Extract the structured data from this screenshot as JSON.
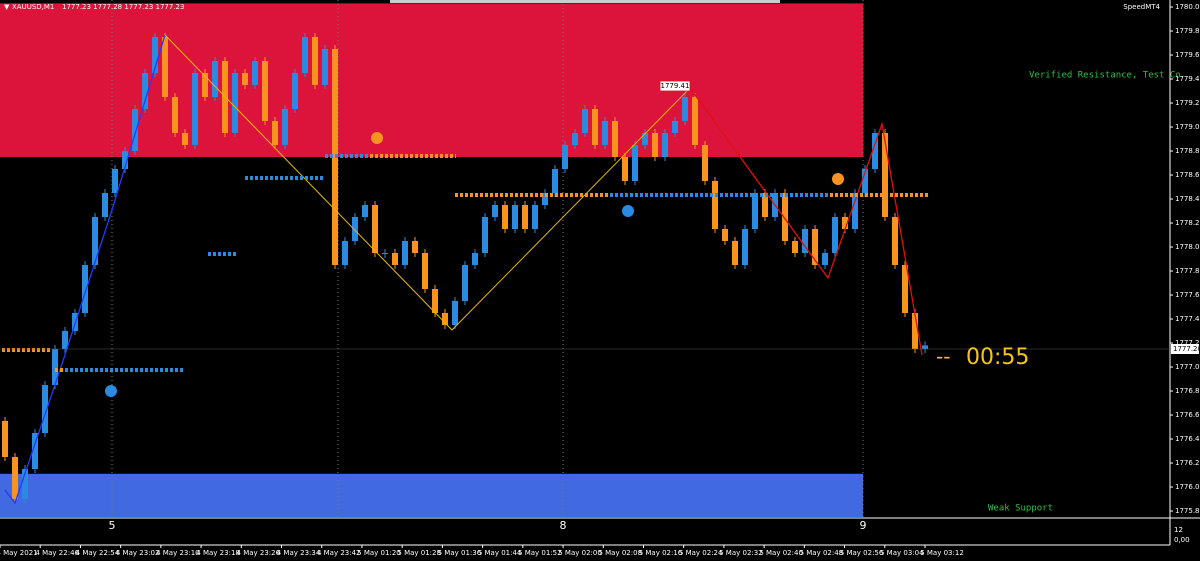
{
  "header": {
    "symbol": "XAUUSD,M1",
    "ohlc": "1777.23 1777.28 1777.23 1777.23"
  },
  "brand": "SpeedMT4",
  "price_axis": {
    "ticks": [
      1780.05,
      1779.85,
      1779.65,
      1779.45,
      1779.25,
      1779.05,
      1778.85,
      1778.65,
      1778.45,
      1778.25,
      1778.05,
      1777.85,
      1777.65,
      1777.45,
      1777.25,
      1777.05,
      1776.85,
      1776.65,
      1776.45,
      1776.25,
      1776.05,
      1775.85
    ],
    "current": {
      "value": 1777.2,
      "label": "1777.20"
    },
    "top": 1780.08,
    "bottom": 1775.8
  },
  "sub_axis": {
    "top": "12",
    "bottom": "0,00"
  },
  "time_axis": [
    "4 May 2021",
    "4 May 22:46",
    "4 May 22:54",
    "4 May 23:02",
    "4 May 23:10",
    "4 May 23:18",
    "4 May 23:26",
    "4 May 23:34",
    "4 May 23:42",
    "5 May 01:20",
    "5 May 01:28",
    "5 May 01:36",
    "5 May 01:44",
    "5 May 01:52",
    "5 May 02:00",
    "5 May 02:08",
    "5 May 02:16",
    "5 May 02:24",
    "5 May 02:32",
    "5 May 02:40",
    "5 May 02:48",
    "5 May 02:56",
    "5 May 03:04",
    "5 May 03:12"
  ],
  "day_labels": [
    "5",
    "8",
    "9"
  ],
  "zones": {
    "resistance": {
      "label": "Verified Resistance, Test Co",
      "low": 1778.8,
      "high": 1780.08
    },
    "support": {
      "label": "Weak Support",
      "low": 1775.8,
      "high": 1776.16
    }
  },
  "price_tag": "1779.41",
  "timer": {
    "prefix": "--",
    "text": "00:55"
  },
  "candles": {
    "first_open": 1776.6,
    "close": [
      1776.3,
      1775.95,
      1776.2,
      1776.5,
      1776.9,
      1777.2,
      1777.35,
      1777.5,
      1777.9,
      1778.3,
      1778.5,
      1778.7,
      1778.85,
      1779.2,
      1779.5,
      1779.8,
      1779.3,
      1779.0,
      1778.9,
      1779.5,
      1779.3,
      1779.6,
      1779.0,
      1779.5,
      1779.4,
      1779.6,
      1779.1,
      1778.9,
      1779.2,
      1779.5,
      1779.8,
      1779.4,
      1779.7,
      1777.9,
      1778.1,
      1778.3,
      1778.4,
      1778.0,
      1778.0,
      1777.9,
      1778.1,
      1778.0,
      1777.7,
      1777.5,
      1777.4,
      1777.6,
      1777.9,
      1778.0,
      1778.3,
      1778.4,
      1778.2,
      1778.4,
      1778.2,
      1778.4,
      1778.5,
      1778.7,
      1778.9,
      1779.0,
      1779.2,
      1778.9,
      1779.1,
      1778.8,
      1778.6,
      1778.9,
      1779.0,
      1778.8,
      1779.0,
      1779.1,
      1779.3,
      1778.9,
      1778.6,
      1778.2,
      1778.1,
      1777.9,
      1778.2,
      1778.5,
      1778.3,
      1778.5,
      1778.1,
      1778.0,
      1778.2,
      1777.9,
      1778.0,
      1778.3,
      1778.2,
      1778.5,
      1778.7,
      1779.0,
      1778.3,
      1777.9,
      1777.5,
      1777.2,
      1777.23
    ]
  }
}
